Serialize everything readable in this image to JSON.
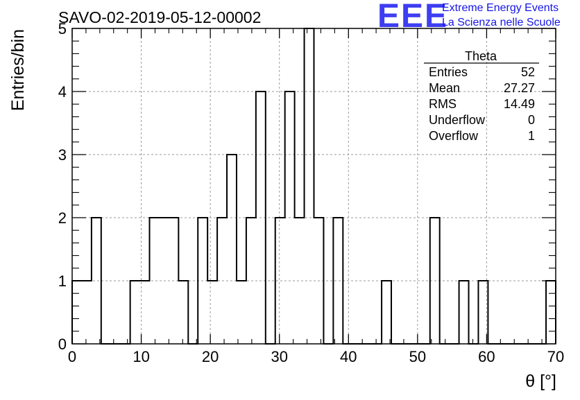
{
  "title": "SAVO-02-2019-05-12-00002",
  "logo": {
    "mark": "EEE",
    "line1": "Extreme Energy Events",
    "line2": "La Scienza nelle Scuole"
  },
  "stats": {
    "name": "Theta",
    "rows": [
      {
        "label": "Entries",
        "value": "52"
      },
      {
        "label": "Mean",
        "value": "27.27"
      },
      {
        "label": "RMS",
        "value": "14.49"
      },
      {
        "label": "Underflow",
        "value": "0"
      },
      {
        "label": "Overflow",
        "value": "1"
      }
    ]
  },
  "chart_data": {
    "type": "histogram",
    "xlabel": "θ [°]",
    "ylabel": "Entries/bin",
    "xlim": [
      0,
      70
    ],
    "ylim": [
      0,
      5
    ],
    "bin_width": 1.4,
    "values": [
      1,
      1,
      2,
      0,
      0,
      0,
      1,
      1,
      2,
      2,
      2,
      1,
      0,
      2,
      1,
      2,
      3,
      1,
      2,
      4,
      0,
      2,
      4,
      2,
      5,
      2,
      0,
      2,
      0,
      0,
      0,
      0,
      1,
      0,
      0,
      0,
      0,
      2,
      0,
      0,
      1,
      0,
      1,
      0,
      0,
      0,
      0,
      0,
      0,
      1
    ],
    "xticks": [
      "0",
      "10",
      "20",
      "30",
      "40",
      "50",
      "60",
      "70"
    ],
    "yticks": [
      "0",
      "1",
      "2",
      "3",
      "4",
      "5"
    ],
    "grid": true,
    "colors": {
      "line": "#000000",
      "grid": "#9a9a9a",
      "logo": "#1515e8"
    }
  }
}
